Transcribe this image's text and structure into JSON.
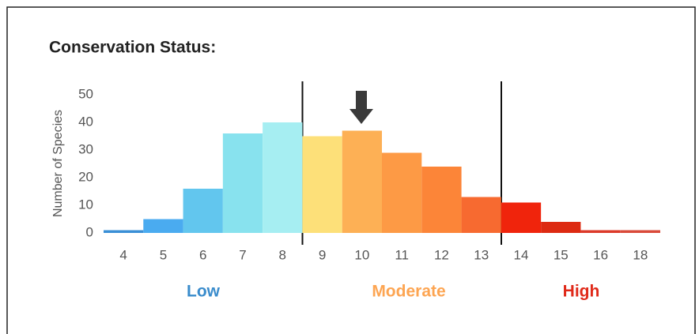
{
  "chart_data": {
    "type": "bar",
    "title": "Conservation Status:",
    "y_label": "Number of Species",
    "categories": [
      "4",
      "5",
      "6",
      "7",
      "8",
      "9",
      "10",
      "11",
      "12",
      "13",
      "14",
      "15",
      "16",
      "18"
    ],
    "values": [
      1,
      5,
      16,
      36,
      40,
      35,
      37,
      29,
      24,
      13,
      11,
      4,
      1,
      1
    ],
    "colors": [
      "#3a8fd6",
      "#4aabf0",
      "#62c6ee",
      "#88e2ee",
      "#a6eef2",
      "#fde079",
      "#fdb055",
      "#fd9a45",
      "#fc8538",
      "#f76a30",
      "#f0240c",
      "#dd2a12",
      "#dc3a2a",
      "#d94a3a"
    ],
    "ylim": [
      0,
      50
    ],
    "yticks": [
      0,
      10,
      20,
      30,
      40,
      50
    ],
    "groups": [
      {
        "name": "Low",
        "color": "#3a8ccc"
      },
      {
        "name": "Moderate",
        "color": "#fda552"
      },
      {
        "name": "High",
        "color": "#e02a1a"
      }
    ]
  }
}
